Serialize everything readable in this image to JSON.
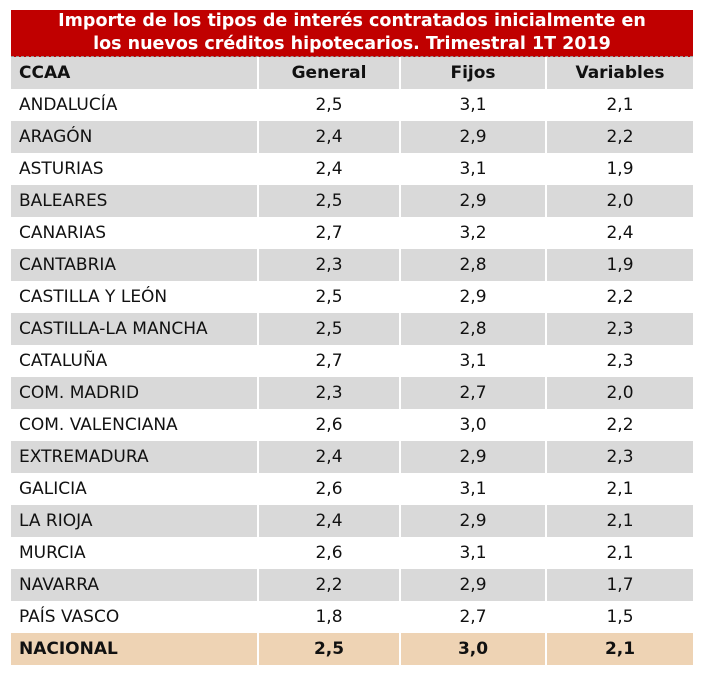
{
  "title_line1": "Importe de los tipos de interés contratados inicialmente en",
  "title_line2": "los nuevos créditos hipotecarios. Trimestral 1T 2019",
  "colors": {
    "title_bg": "#c00000",
    "stripe": "#d9d9d9",
    "total_bg": "#eed3b4"
  },
  "chart_data": {
    "type": "table",
    "title": "Importe de los tipos de interés contratados inicialmente en los nuevos créditos hipotecarios. Trimestral 1T 2019",
    "columns": [
      "CCAA",
      "General",
      "Fijos",
      "Variables"
    ],
    "rows": [
      [
        "ANDALUCÍA",
        "2,5",
        "3,1",
        "2,1"
      ],
      [
        "ARAGÓN",
        "2,4",
        "2,9",
        "2,2"
      ],
      [
        "ASTURIAS",
        "2,4",
        "3,1",
        "1,9"
      ],
      [
        "BALEARES",
        "2,5",
        "2,9",
        "2,0"
      ],
      [
        "CANARIAS",
        "2,7",
        "3,2",
        "2,4"
      ],
      [
        "CANTABRIA",
        "2,3",
        "2,8",
        "1,9"
      ],
      [
        "CASTILLA Y LEÓN",
        "2,5",
        "2,9",
        "2,2"
      ],
      [
        "CASTILLA-LA MANCHA",
        "2,5",
        "2,8",
        "2,3"
      ],
      [
        "CATALUÑA",
        "2,7",
        "3,1",
        "2,3"
      ],
      [
        "COM. MADRID",
        "2,3",
        "2,7",
        "2,0"
      ],
      [
        "COM. VALENCIANA",
        "2,6",
        "3,0",
        "2,2"
      ],
      [
        "EXTREMADURA",
        "2,4",
        "2,9",
        "2,3"
      ],
      [
        "GALICIA",
        "2,6",
        "3,1",
        "2,1"
      ],
      [
        "LA RIOJA",
        "2,4",
        "2,9",
        "2,1"
      ],
      [
        "MURCIA",
        "2,6",
        "3,1",
        "2,1"
      ],
      [
        "NAVARRA",
        "2,2",
        "2,9",
        "1,7"
      ],
      [
        "PAÍS VASCO",
        "1,8",
        "2,7",
        "1,5"
      ]
    ],
    "total": [
      "NACIONAL",
      "2,5",
      "3,0",
      "2,1"
    ]
  }
}
